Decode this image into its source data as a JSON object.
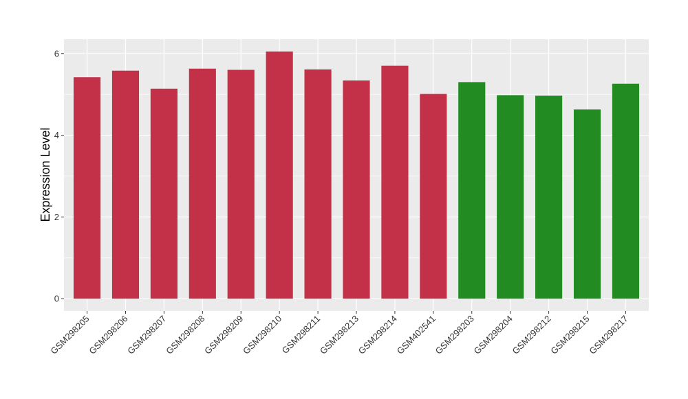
{
  "chart_data": {
    "type": "bar",
    "title": "",
    "xlabel": "",
    "ylabel": "Expression Level",
    "ylim": [
      -0.3,
      6.35
    ],
    "yticks": [
      0,
      2,
      4,
      6
    ],
    "grid": true,
    "legend": "none",
    "categories": [
      "GSM298205",
      "GSM298206",
      "GSM298207",
      "GSM298208",
      "GSM298209",
      "GSM298210",
      "GSM298211",
      "GSM298213",
      "GSM298214",
      "GSM402541",
      "GSM298203",
      "GSM298204",
      "GSM298212",
      "GSM298215",
      "GSM298217"
    ],
    "values": [
      5.42,
      5.58,
      5.14,
      5.63,
      5.6,
      6.05,
      5.61,
      5.34,
      5.7,
      5.01,
      5.3,
      4.98,
      4.97,
      4.63,
      5.26
    ],
    "bar_colors": [
      "#c33149",
      "#c33149",
      "#c33149",
      "#c33149",
      "#c33149",
      "#c33149",
      "#c33149",
      "#c33149",
      "#c33149",
      "#c33149",
      "#228b22",
      "#228b22",
      "#228b22",
      "#228b22",
      "#228b22"
    ],
    "panel_background": "#ebebeb",
    "grid_color": "#ffffff"
  }
}
